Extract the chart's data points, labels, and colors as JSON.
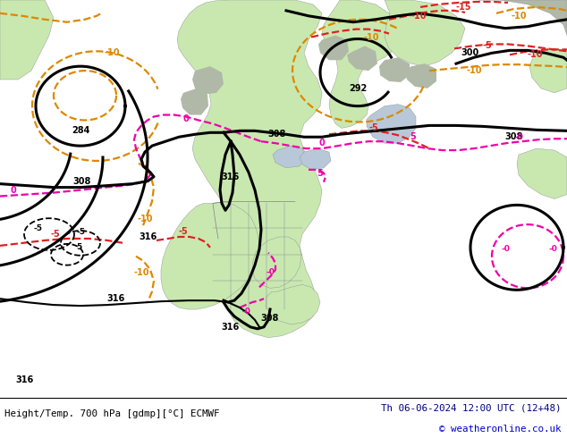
{
  "title_left": "Height/Temp. 700 hPa [gdmp][°C] ECMWF",
  "title_right": "Th 06-06-2024 12:00 UTC (12+48)",
  "copyright": "© weatheronline.co.uk",
  "bg_light": "#e8e8e8",
  "land_green": "#c8e8b0",
  "land_gray": "#b0b8a8",
  "ocean_color": "#d8e0e8",
  "border_color": "#808090",
  "footer_bg": "#ffffff",
  "title_color": "#000080",
  "copyright_color": "#0000cc",
  "left_title_color": "#000000",
  "height_color": "#000000",
  "temp_red": "#dd2222",
  "temp_orange": "#dd8800",
  "temp_magenta": "#ee00aa"
}
